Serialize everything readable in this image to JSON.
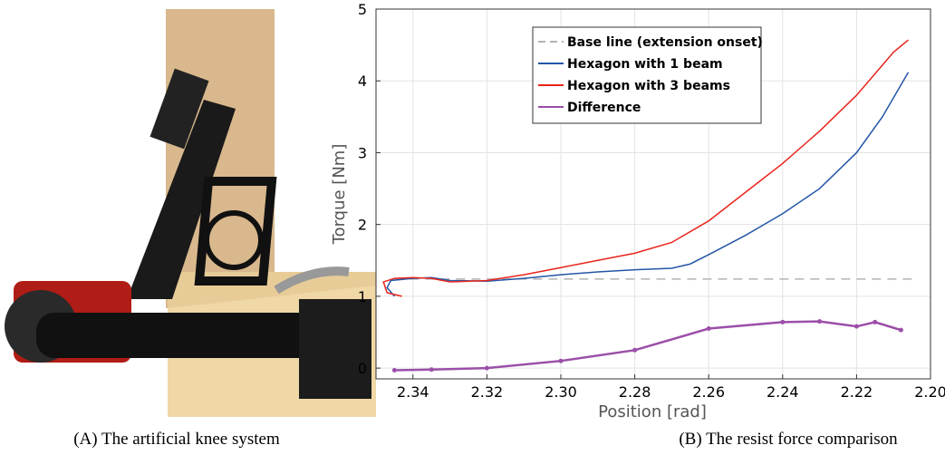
{
  "subfigures": [
    {
      "caption": "(A) The artificial knee system"
    },
    {
      "caption": "(B) The resist force comparison"
    }
  ],
  "chart_data": {
    "type": "line",
    "xlabel": "Position [rad]",
    "ylabel": "Torque [Nm]",
    "xlim": [
      2.35,
      2.2
    ],
    "ylim": [
      -0.15,
      5
    ],
    "xticks": [
      2.34,
      2.32,
      {
        "value": 2.3,
        "label": "2.30"
      },
      2.28,
      2.26,
      2.24,
      2.22,
      {
        "value": 2.2,
        "label": "2.20"
      }
    ],
    "yticks": [
      0,
      1,
      2,
      3,
      4,
      5
    ],
    "grid": true,
    "legend": "upper-left",
    "series": [
      {
        "name": "Base line (extension onset)",
        "color": "#b3b3b3",
        "linestyle": "dashed",
        "x": [
          2.345,
          2.205
        ],
        "values": [
          1.24,
          1.24
        ]
      },
      {
        "name": "Hexagon with 1 beam",
        "color": "#2456a6",
        "linestyle": "solid",
        "x": [
          2.345,
          2.347,
          2.346,
          2.34,
          2.335,
          2.33,
          2.32,
          2.31,
          2.3,
          2.29,
          2.28,
          2.27,
          2.265,
          2.26,
          2.25,
          2.24,
          2.23,
          2.22,
          2.213,
          2.206
        ],
        "values": [
          1.0,
          1.12,
          1.22,
          1.25,
          1.26,
          1.22,
          1.21,
          1.25,
          1.3,
          1.34,
          1.37,
          1.39,
          1.45,
          1.58,
          1.85,
          2.15,
          2.5,
          3.0,
          3.5,
          4.12
        ]
      },
      {
        "name": "Hexagon with 3 beams",
        "color": "#e8241c",
        "linestyle": "solid",
        "x": [
          2.343,
          2.347,
          2.348,
          2.345,
          2.34,
          2.335,
          2.33,
          2.32,
          2.31,
          2.3,
          2.29,
          2.28,
          2.27,
          2.26,
          2.25,
          2.24,
          2.23,
          2.22,
          2.21,
          2.206
        ],
        "values": [
          1.0,
          1.05,
          1.2,
          1.25,
          1.26,
          1.25,
          1.2,
          1.22,
          1.3,
          1.4,
          1.5,
          1.6,
          1.75,
          2.05,
          2.45,
          2.85,
          3.3,
          3.8,
          4.4,
          4.57
        ]
      },
      {
        "name": "Difference",
        "color": "#9b4fa8",
        "linestyle": "solid",
        "marker": "o",
        "x": [
          2.345,
          2.335,
          2.32,
          2.3,
          2.28,
          2.26,
          2.24,
          2.23,
          2.22,
          2.215,
          2.208
        ],
        "values": [
          -0.03,
          -0.02,
          0.0,
          0.1,
          0.25,
          0.55,
          0.64,
          0.65,
          0.58,
          0.64,
          0.53
        ]
      }
    ]
  }
}
